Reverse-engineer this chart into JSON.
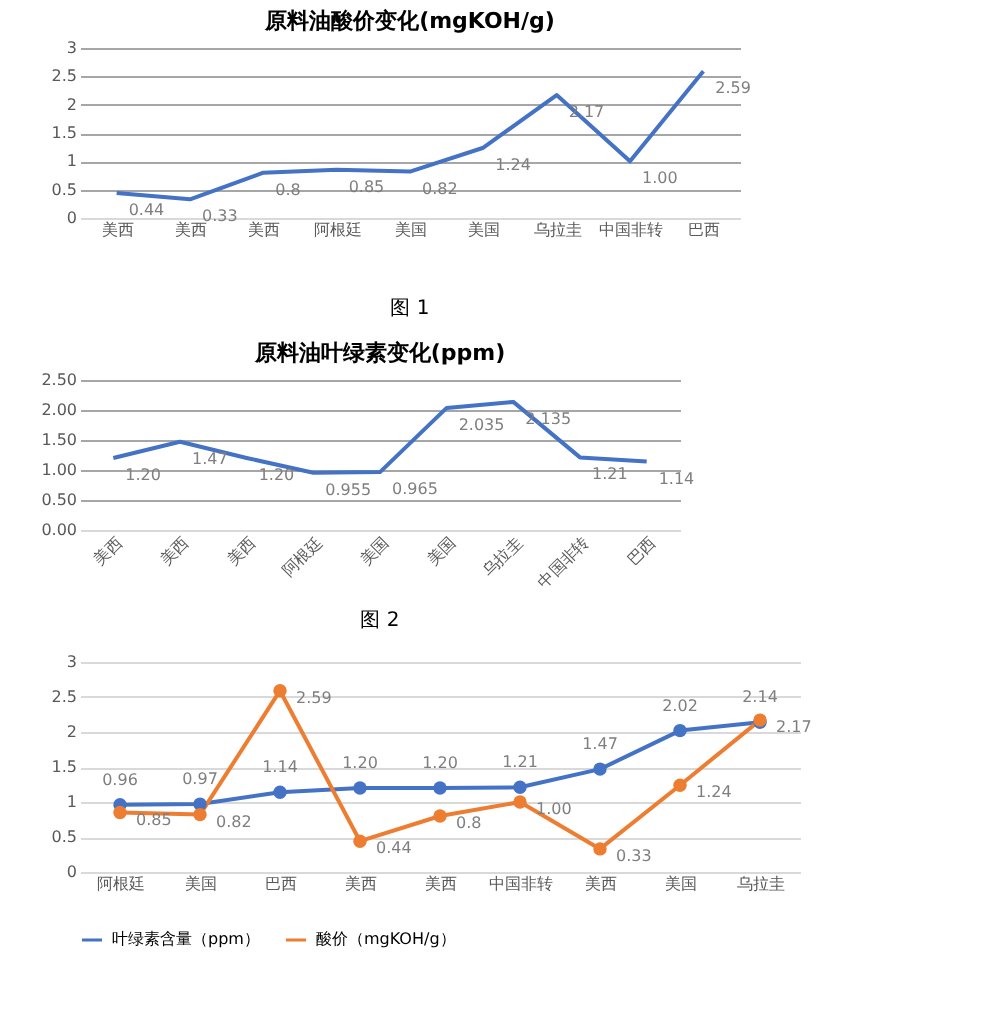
{
  "chart_data": [
    {
      "type": "line",
      "title": "原料油酸价变化(mgKOH/g)",
      "categories": [
        "美西",
        "美西",
        "美西",
        "阿根廷",
        "美国",
        "美国",
        "乌拉圭",
        "中国非转",
        "巴西"
      ],
      "series": [
        {
          "color": "#4472c4",
          "values": [
            0.44,
            0.33,
            0.8,
            0.85,
            0.82,
            1.24,
            2.17,
            1.0,
            2.59
          ],
          "value_labels": [
            "0.44",
            "0.33",
            "0.8",
            "0.85",
            "0.82",
            "1.24",
            "2.17",
            "1.00",
            "2.59"
          ]
        }
      ],
      "ylim": [
        0,
        3
      ],
      "yticks": [
        0,
        0.5,
        1,
        1.5,
        2,
        2.5,
        3
      ],
      "grid": "y",
      "annotations": [
        "图 1"
      ]
    },
    {
      "type": "line",
      "title": "原料油叶绿素变化(ppm)",
      "categories": [
        "美西",
        "美西",
        "美西",
        "阿根廷",
        "美国",
        "美国",
        "乌拉圭",
        "中国非转",
        "巴西"
      ],
      "series": [
        {
          "color": "#4472c4",
          "values": [
            1.2,
            1.47,
            1.2,
            0.955,
            0.965,
            2.035,
            2.135,
            1.21,
            1.14
          ],
          "value_labels": [
            "1.20",
            "1.47",
            "1.20",
            "0.955",
            "0.965",
            "2.035",
            "2.135",
            "1.21",
            "1.14"
          ]
        }
      ],
      "ylim": [
        0,
        2.5
      ],
      "yticks": [
        {
          "value": 0,
          "label": "0.00"
        },
        {
          "value": 0.5,
          "label": "0.50"
        },
        {
          "value": 1,
          "label": "1.00"
        },
        {
          "value": 1.5,
          "label": "1.50"
        },
        {
          "value": 2,
          "label": "2.00"
        },
        {
          "value": 2.5,
          "label": "2.50"
        }
      ],
      "grid": "y",
      "annotations": [
        "图 2"
      ]
    },
    {
      "type": "line",
      "categories": [
        "阿根廷",
        "美国",
        "巴西",
        "美西",
        "美西",
        "中国非转",
        "美西",
        "美国",
        "乌拉圭"
      ],
      "series": [
        {
          "name": "叶绿素含量（ppm）",
          "color": "#4472c4",
          "values": [
            0.96,
            0.97,
            1.14,
            1.2,
            1.2,
            1.21,
            1.47,
            2.02,
            2.14
          ],
          "value_labels": [
            "0.96",
            "0.97",
            "1.14",
            "1.20",
            "1.20",
            "1.21",
            "1.47",
            "2.02",
            "2.14"
          ]
        },
        {
          "name": "酸价（mgKOH/g）",
          "color": "#ed7d31",
          "values": [
            0.85,
            0.82,
            2.59,
            0.44,
            0.8,
            1.0,
            0.33,
            1.24,
            2.17
          ],
          "value_labels": [
            "0.85",
            "0.82",
            "2.59",
            "0.44",
            "0.8",
            "1.00",
            "0.33",
            "1.24",
            "2.17"
          ]
        }
      ],
      "ylim": [
        0,
        3
      ],
      "yticks": [
        0,
        0.5,
        1,
        1.5,
        2,
        2.5,
        3
      ],
      "grid": "y",
      "legend": "bottom",
      "marker": "circle"
    }
  ]
}
